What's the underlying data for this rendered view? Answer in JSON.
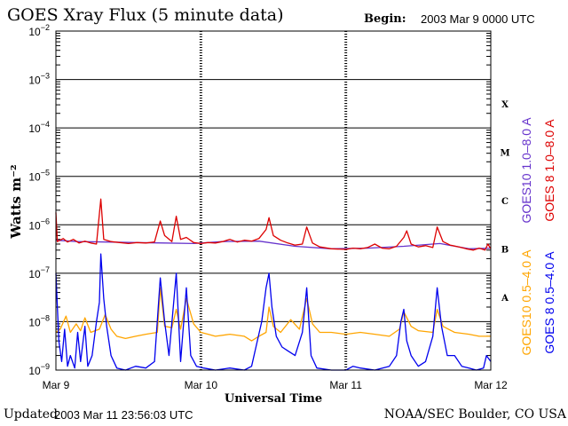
{
  "header": {
    "title": "GOES Xray Flux (5 minute data)",
    "begin_label": "Begin:",
    "begin_value": "2003 Mar 9 0000 UTC"
  },
  "footer": {
    "updated_label": "Updated",
    "updated_value": "2003 Mar 11 23:56:03 UTC",
    "credit": "NOAA/SEC Boulder, CO USA"
  },
  "colors": {
    "goes10_long": "#6633cc",
    "goes8_long": "#dd0000",
    "goes10_short": "#ffa500",
    "goes8_short": "#0000ee"
  },
  "chart_data": {
    "type": "line",
    "ylabel": "Watts m⁻²",
    "xlabel": "Universal Time",
    "x_ticks": [
      "Mar 9",
      "Mar 10",
      "Mar 11",
      "Mar 12"
    ],
    "x_range_days": [
      0,
      3
    ],
    "y_scale": "log",
    "ylim": [
      1e-09,
      0.01
    ],
    "y_ticks": [
      {
        "value": 0.01,
        "base": "10",
        "exp": "−2"
      },
      {
        "value": 0.001,
        "base": "10",
        "exp": "−3"
      },
      {
        "value": 0.0001,
        "base": "10",
        "exp": "−4"
      },
      {
        "value": 1e-05,
        "base": "10",
        "exp": "−5"
      },
      {
        "value": 1e-06,
        "base": "10",
        "exp": "−6"
      },
      {
        "value": 1e-07,
        "base": "10",
        "exp": "−7"
      },
      {
        "value": 1e-08,
        "base": "10",
        "exp": "−8"
      },
      {
        "value": 1e-09,
        "base": "10",
        "exp": "−9"
      }
    ],
    "flare_classes": [
      {
        "label": "X",
        "flux": 0.000316
      },
      {
        "label": "M",
        "flux": 3.16e-05
      },
      {
        "label": "C",
        "flux": 3.16e-06
      },
      {
        "label": "B",
        "flux": 3.16e-07
      },
      {
        "label": "A",
        "flux": 3.16e-08
      }
    ],
    "series": [
      {
        "name": "GOES10 1.0–8.0 A",
        "color": "#6633cc",
        "points": [
          [
            0,
            4.8e-07
          ],
          [
            0.15,
            4.5e-07
          ],
          [
            0.35,
            4.4e-07
          ],
          [
            0.55,
            4.3e-07
          ],
          [
            0.75,
            4.2e-07
          ],
          [
            0.95,
            4.1e-07
          ],
          [
            1.15,
            4.5e-07
          ],
          [
            1.4,
            4.6e-07
          ],
          [
            1.65,
            3.6e-07
          ],
          [
            1.9,
            3.2e-07
          ],
          [
            2.15,
            3.3e-07
          ],
          [
            2.4,
            3.6e-07
          ],
          [
            2.65,
            4.1e-07
          ],
          [
            2.85,
            3.2e-07
          ],
          [
            3.0,
            3.3e-07
          ]
        ]
      },
      {
        "name": "GOES 8 1.0–8.0 A",
        "color": "#dd0000",
        "points": [
          [
            0,
            1.8e-06
          ],
          [
            0.01,
            4.5e-07
          ],
          [
            0.05,
            5.2e-07
          ],
          [
            0.08,
            4.4e-07
          ],
          [
            0.12,
            5e-07
          ],
          [
            0.16,
            4.2e-07
          ],
          [
            0.2,
            4.6e-07
          ],
          [
            0.24,
            4.2e-07
          ],
          [
            0.28,
            4e-07
          ],
          [
            0.31,
            3.4e-06
          ],
          [
            0.33,
            5e-07
          ],
          [
            0.38,
            4.5e-07
          ],
          [
            0.44,
            4.3e-07
          ],
          [
            0.5,
            4.1e-07
          ],
          [
            0.56,
            4.3e-07
          ],
          [
            0.62,
            4.2e-07
          ],
          [
            0.68,
            4.4e-07
          ],
          [
            0.72,
            1.2e-06
          ],
          [
            0.75,
            6e-07
          ],
          [
            0.8,
            4.5e-07
          ],
          [
            0.83,
            1.5e-06
          ],
          [
            0.86,
            5e-07
          ],
          [
            0.9,
            5.5e-07
          ],
          [
            0.95,
            4.3e-07
          ],
          [
            1.0,
            4.1e-07
          ],
          [
            1.05,
            4.3e-07
          ],
          [
            1.1,
            4.2e-07
          ],
          [
            1.15,
            4.5e-07
          ],
          [
            1.2,
            5e-07
          ],
          [
            1.25,
            4.4e-07
          ],
          [
            1.3,
            4.8e-07
          ],
          [
            1.35,
            4.6e-07
          ],
          [
            1.4,
            5.2e-07
          ],
          [
            1.45,
            8e-07
          ],
          [
            1.47,
            1.4e-06
          ],
          [
            1.5,
            6e-07
          ],
          [
            1.55,
            4.8e-07
          ],
          [
            1.6,
            4.2e-07
          ],
          [
            1.65,
            3.8e-07
          ],
          [
            1.7,
            4e-07
          ],
          [
            1.73,
            9e-07
          ],
          [
            1.77,
            4.2e-07
          ],
          [
            1.82,
            3.5e-07
          ],
          [
            1.9,
            3.2e-07
          ],
          [
            2.0,
            3.1e-07
          ],
          [
            2.05,
            3.3e-07
          ],
          [
            2.1,
            3.2e-07
          ],
          [
            2.15,
            3.4e-07
          ],
          [
            2.2,
            4e-07
          ],
          [
            2.25,
            3.3e-07
          ],
          [
            2.3,
            3.2e-07
          ],
          [
            2.35,
            3.6e-07
          ],
          [
            2.4,
            5.5e-07
          ],
          [
            2.42,
            7.5e-07
          ],
          [
            2.45,
            4e-07
          ],
          [
            2.5,
            3.5e-07
          ],
          [
            2.55,
            3.7e-07
          ],
          [
            2.6,
            3.4e-07
          ],
          [
            2.63,
            9e-07
          ],
          [
            2.67,
            4.5e-07
          ],
          [
            2.72,
            3.8e-07
          ],
          [
            2.78,
            3.5e-07
          ],
          [
            2.83,
            3.2e-07
          ],
          [
            2.88,
            3e-07
          ],
          [
            2.92,
            3.3e-07
          ],
          [
            2.96,
            3e-07
          ],
          [
            2.98,
            4e-07
          ],
          [
            3.0,
            3.2e-07
          ]
        ]
      },
      {
        "name": "GOES10 0.5–4.0 A",
        "color": "#ffa500",
        "points": [
          [
            0,
            6e-09
          ],
          [
            0.03,
            7e-09
          ],
          [
            0.07,
            1.3e-08
          ],
          [
            0.1,
            6e-09
          ],
          [
            0.14,
            9e-09
          ],
          [
            0.17,
            6.5e-09
          ],
          [
            0.2,
            1.2e-08
          ],
          [
            0.24,
            6e-09
          ],
          [
            0.3,
            7e-09
          ],
          [
            0.34,
            1.4e-08
          ],
          [
            0.38,
            7e-09
          ],
          [
            0.42,
            5e-09
          ],
          [
            0.48,
            4.5e-09
          ],
          [
            0.55,
            5e-09
          ],
          [
            0.62,
            5.5e-09
          ],
          [
            0.7,
            6e-09
          ],
          [
            0.72,
            5e-08
          ],
          [
            0.75,
            8e-09
          ],
          [
            0.8,
            7.5e-09
          ],
          [
            0.83,
            1.8e-08
          ],
          [
            0.86,
            7e-09
          ],
          [
            0.9,
            3e-08
          ],
          [
            0.95,
            9e-09
          ],
          [
            1.0,
            6e-09
          ],
          [
            1.05,
            5.5e-09
          ],
          [
            1.1,
            5e-09
          ],
          [
            1.2,
            5.5e-09
          ],
          [
            1.3,
            5e-09
          ],
          [
            1.35,
            4e-09
          ],
          [
            1.4,
            5e-09
          ],
          [
            1.45,
            6e-09
          ],
          [
            1.47,
            2e-08
          ],
          [
            1.5,
            8e-09
          ],
          [
            1.55,
            6e-09
          ],
          [
            1.62,
            1.1e-08
          ],
          [
            1.68,
            7e-09
          ],
          [
            1.73,
            3e-08
          ],
          [
            1.77,
            9e-09
          ],
          [
            1.82,
            6e-09
          ],
          [
            1.9,
            6e-09
          ],
          [
            2.0,
            5.5e-09
          ],
          [
            2.1,
            6e-09
          ],
          [
            2.2,
            5.5e-09
          ],
          [
            2.3,
            5e-09
          ],
          [
            2.37,
            7e-09
          ],
          [
            2.4,
            1.6e-08
          ],
          [
            2.45,
            8e-09
          ],
          [
            2.5,
            6.5e-09
          ],
          [
            2.6,
            6e-09
          ],
          [
            2.63,
            1.8e-08
          ],
          [
            2.67,
            8e-09
          ],
          [
            2.75,
            6e-09
          ],
          [
            2.85,
            5.5e-09
          ],
          [
            2.92,
            5e-09
          ],
          [
            3.0,
            5e-09
          ]
        ]
      },
      {
        "name": "GOES 8 0.5–4.0 A",
        "color": "#0000ee",
        "points": [
          [
            0,
            1e-07
          ],
          [
            0.02,
            4e-09
          ],
          [
            0.04,
            1.5e-09
          ],
          [
            0.06,
            7e-09
          ],
          [
            0.08,
            1.2e-09
          ],
          [
            0.1,
            2e-09
          ],
          [
            0.13,
            1.1e-09
          ],
          [
            0.15,
            6e-09
          ],
          [
            0.17,
            1.5e-09
          ],
          [
            0.2,
            8e-09
          ],
          [
            0.22,
            1.2e-09
          ],
          [
            0.25,
            2e-09
          ],
          [
            0.28,
            1e-08
          ],
          [
            0.3,
            2.5e-08
          ],
          [
            0.31,
            2.5e-07
          ],
          [
            0.33,
            3e-08
          ],
          [
            0.35,
            8e-09
          ],
          [
            0.38,
            2e-09
          ],
          [
            0.42,
            1.1e-09
          ],
          [
            0.48,
            1e-09
          ],
          [
            0.55,
            1.2e-09
          ],
          [
            0.62,
            1.1e-09
          ],
          [
            0.68,
            1.5e-09
          ],
          [
            0.72,
            8e-08
          ],
          [
            0.75,
            1e-08
          ],
          [
            0.78,
            2e-09
          ],
          [
            0.83,
            1e-07
          ],
          [
            0.86,
            1.5e-09
          ],
          [
            0.9,
            5e-08
          ],
          [
            0.93,
            2e-09
          ],
          [
            0.97,
            1.2e-09
          ],
          [
            1.02,
            1.1e-09
          ],
          [
            1.1,
            1e-09
          ],
          [
            1.2,
            1.1e-09
          ],
          [
            1.3,
            1e-09
          ],
          [
            1.35,
            1.2e-09
          ],
          [
            1.38,
            3e-09
          ],
          [
            1.42,
            1e-08
          ],
          [
            1.45,
            5e-08
          ],
          [
            1.47,
            1e-07
          ],
          [
            1.49,
            2e-08
          ],
          [
            1.52,
            5e-09
          ],
          [
            1.56,
            3e-09
          ],
          [
            1.6,
            2.5e-09
          ],
          [
            1.65,
            2e-09
          ],
          [
            1.7,
            6e-09
          ],
          [
            1.73,
            5e-08
          ],
          [
            1.76,
            2e-09
          ],
          [
            1.8,
            1.1e-09
          ],
          [
            1.9,
            1e-09
          ],
          [
            2.0,
            1e-09
          ],
          [
            2.05,
            1.2e-09
          ],
          [
            2.1,
            1.1e-09
          ],
          [
            2.2,
            1e-09
          ],
          [
            2.3,
            1.2e-09
          ],
          [
            2.35,
            2e-09
          ],
          [
            2.38,
            1e-08
          ],
          [
            2.4,
            1.8e-08
          ],
          [
            2.42,
            4e-09
          ],
          [
            2.45,
            2e-09
          ],
          [
            2.5,
            1.2e-09
          ],
          [
            2.55,
            1.5e-09
          ],
          [
            2.6,
            5e-09
          ],
          [
            2.63,
            5e-08
          ],
          [
            2.66,
            8e-09
          ],
          [
            2.7,
            2e-09
          ],
          [
            2.75,
            2e-09
          ],
          [
            2.8,
            1.2e-09
          ],
          [
            2.85,
            1.1e-09
          ],
          [
            2.9,
            1e-09
          ],
          [
            2.95,
            1.1e-09
          ],
          [
            2.97,
            2e-09
          ],
          [
            3.0,
            1.5e-09
          ]
        ]
      }
    ]
  }
}
